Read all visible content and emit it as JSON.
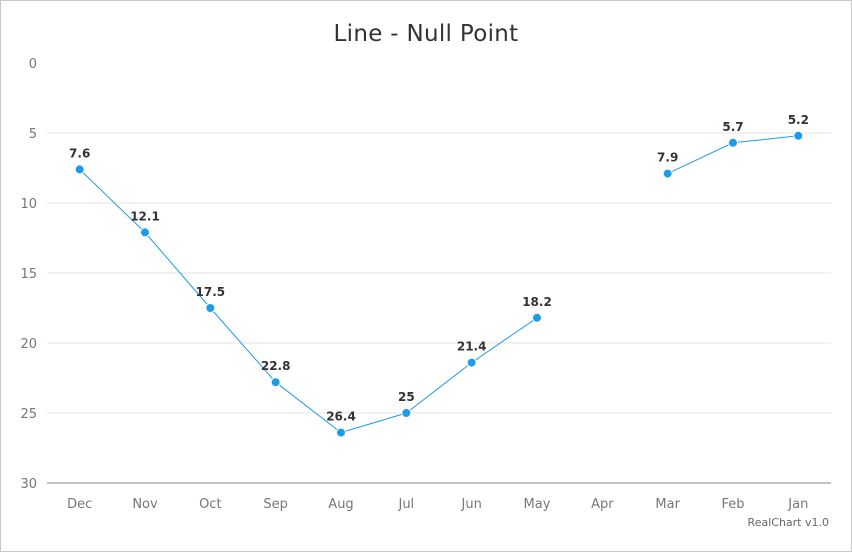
{
  "chart_data": {
    "type": "line",
    "title": "Line - Null Point",
    "categories": [
      "Dec",
      "Nov",
      "Oct",
      "Sep",
      "Aug",
      "Jul",
      "Jun",
      "May",
      "Apr",
      "Mar",
      "Feb",
      "Jan"
    ],
    "series": [
      {
        "values": [
          7.6,
          12.1,
          17.5,
          22.8,
          26.4,
          25,
          21.4,
          18.2,
          null,
          7.9,
          5.7,
          5.2
        ]
      }
    ],
    "y_axis": {
      "reversed": true,
      "ylim": [
        0,
        30
      ],
      "ticks": [
        0,
        5,
        10,
        15,
        20,
        25,
        30
      ]
    },
    "grid": true,
    "legend": "none",
    "series_color": "#1e9be8",
    "credit": "RealChart v1.0"
  }
}
